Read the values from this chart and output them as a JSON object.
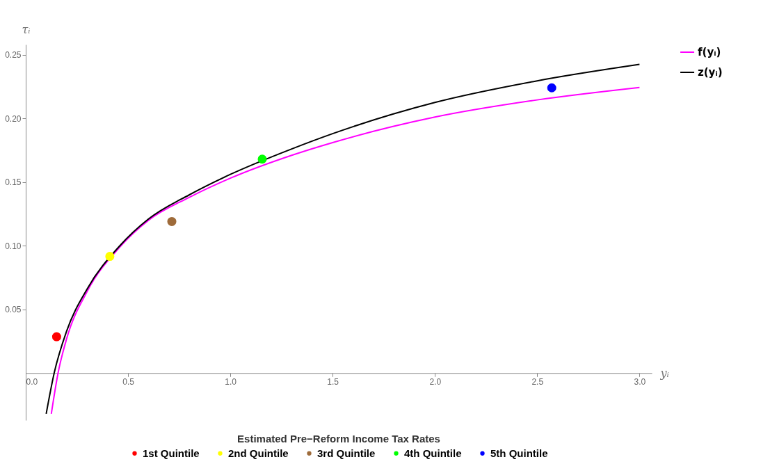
{
  "chart_data": {
    "type": "line",
    "xlabel": "yᵢ",
    "ylabel": "τᵢ",
    "legend_title": "Estimated Pre−Reform Income Tax Rates",
    "legend": "right",
    "xlim": [
      0,
      3.06
    ],
    "ylim": [
      -0.037,
      0.258
    ],
    "xticks": [
      {
        "value": 0,
        "label": "0.0"
      },
      0.5,
      {
        "value": 1,
        "label": "1.0"
      },
      1.5,
      {
        "value": 2,
        "label": "2.0"
      },
      2.5,
      {
        "value": 3,
        "label": "3.0"
      }
    ],
    "yticks": [
      0.05,
      {
        "value": 0.1,
        "label": "0.10"
      },
      0.15,
      {
        "value": 0.2,
        "label": "0.20"
      },
      0.25
    ],
    "grid": false,
    "series": [
      {
        "name": "f(yᵢ)",
        "color": "#ff00ff",
        "x": [
          0.125,
          0.158,
          0.2,
          0.3,
          0.46,
          0.6,
          0.8,
          1.0,
          1.3,
          1.5,
          2.0,
          2.5,
          3.0
        ],
        "values": [
          -0.032,
          0,
          0.027,
          0.064,
          0.099,
          0.12,
          0.138,
          0.153,
          0.171,
          0.181,
          0.201,
          0.2145,
          0.2243
        ]
      },
      {
        "name": "z(yᵢ)",
        "color": "#000000",
        "x": [
          0.1,
          0.139,
          0.2,
          0.3,
          0.46,
          0.6,
          0.8,
          1.0,
          1.3,
          1.5,
          2.0,
          2.5,
          3.0
        ],
        "values": [
          -0.032,
          0,
          0.033,
          0.066,
          0.1,
          0.121,
          0.14,
          0.156,
          0.176,
          0.188,
          0.2125,
          0.2295,
          0.2424
        ]
      },
      {
        "name": "1st Quintile",
        "type": "scatter",
        "color": "#ff0000",
        "x": [
          0.151
        ],
        "values": [
          0.0285
        ]
      },
      {
        "name": "2nd Quintile",
        "type": "scatter",
        "color": "#ffff00",
        "x": [
          0.411
        ],
        "values": [
          0.0916
        ]
      },
      {
        "name": "3rd Quintile",
        "type": "scatter",
        "color": "#9e6b3a",
        "x": [
          0.714
        ],
        "values": [
          0.119
        ]
      },
      {
        "name": "4th Quintile",
        "type": "scatter",
        "color": "#00ff00",
        "x": [
          1.156
        ],
        "values": [
          0.168
        ]
      },
      {
        "name": "5th Quintile",
        "type": "scatter",
        "color": "#0000ff",
        "x": [
          2.571
        ],
        "values": [
          0.224
        ]
      }
    ]
  }
}
